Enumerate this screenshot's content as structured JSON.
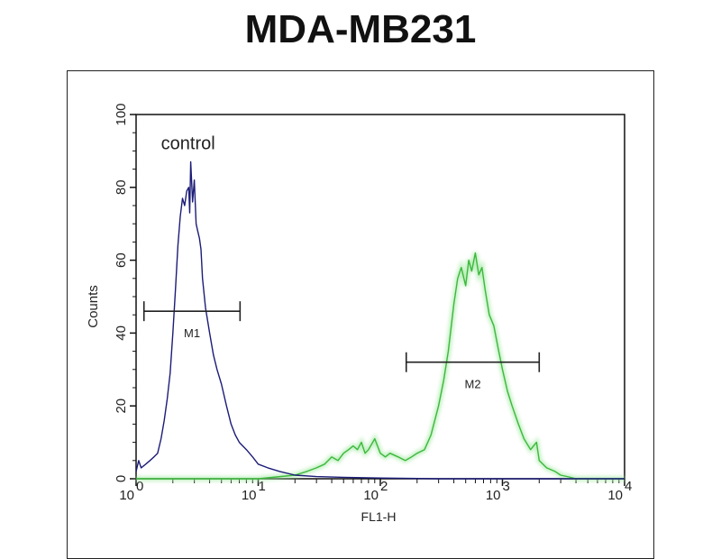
{
  "chart_data": {
    "type": "line",
    "title": "MDA-MB231",
    "xlabel": "FL1-H",
    "ylabel": "Counts",
    "x_scale": "log",
    "xlim": [
      1,
      10000
    ],
    "ylim": [
      0,
      100
    ],
    "x_tick_labels": [
      {
        "base": "10",
        "exp": "0"
      },
      {
        "base": "10",
        "exp": "1"
      },
      {
        "base": "10",
        "exp": "2"
      },
      {
        "base": "10",
        "exp": "3"
      },
      {
        "base": "10",
        "exp": "4"
      }
    ],
    "y_ticks": [
      0,
      20,
      40,
      60,
      80,
      100
    ],
    "grid": false,
    "annotations": [
      {
        "text": "control",
        "x": 1.6,
        "y": 92
      }
    ],
    "markers": [
      {
        "label": "M1",
        "x_start": 1.16,
        "x_end": 7.1,
        "y": 46
      },
      {
        "label": "M2",
        "x_start": 163,
        "x_end": 2000,
        "y": 32
      }
    ],
    "series": [
      {
        "color": "#1c1c78",
        "points": [
          [
            1.0,
            2
          ],
          [
            1.05,
            5
          ],
          [
            1.1,
            3
          ],
          [
            1.2,
            4
          ],
          [
            1.3,
            5
          ],
          [
            1.4,
            6
          ],
          [
            1.5,
            7
          ],
          [
            1.6,
            11
          ],
          [
            1.7,
            16
          ],
          [
            1.8,
            22
          ],
          [
            1.9,
            29
          ],
          [
            2.0,
            40
          ],
          [
            2.1,
            52
          ],
          [
            2.2,
            64
          ],
          [
            2.3,
            72
          ],
          [
            2.4,
            77
          ],
          [
            2.5,
            75
          ],
          [
            2.6,
            79
          ],
          [
            2.7,
            80
          ],
          [
            2.75,
            73
          ],
          [
            2.8,
            87
          ],
          [
            2.9,
            76
          ],
          [
            3.0,
            82
          ],
          [
            3.1,
            70
          ],
          [
            3.2,
            68
          ],
          [
            3.3,
            66
          ],
          [
            3.4,
            63
          ],
          [
            3.5,
            55
          ],
          [
            3.7,
            47
          ],
          [
            4.0,
            40
          ],
          [
            4.3,
            34
          ],
          [
            4.6,
            30
          ],
          [
            5.0,
            26
          ],
          [
            5.5,
            20
          ],
          [
            6.0,
            15
          ],
          [
            6.5,
            12
          ],
          [
            7.0,
            10
          ],
          [
            8.0,
            8
          ],
          [
            9.0,
            6
          ],
          [
            10,
            4
          ],
          [
            12,
            3
          ],
          [
            15,
            2
          ],
          [
            20,
            1
          ],
          [
            30,
            0.6
          ],
          [
            50,
            0.4
          ],
          [
            100,
            0.2
          ],
          [
            300,
            0
          ],
          [
            10000,
            0
          ]
        ]
      },
      {
        "color": "#3cb83c",
        "points": [
          [
            1,
            0
          ],
          [
            10,
            0
          ],
          [
            20,
            1
          ],
          [
            25,
            2
          ],
          [
            30,
            3
          ],
          [
            35,
            4
          ],
          [
            40,
            6
          ],
          [
            45,
            5
          ],
          [
            50,
            7
          ],
          [
            55,
            8
          ],
          [
            60,
            9
          ],
          [
            65,
            8
          ],
          [
            70,
            10
          ],
          [
            75,
            7
          ],
          [
            80,
            8
          ],
          [
            90,
            11
          ],
          [
            100,
            7
          ],
          [
            110,
            6
          ],
          [
            120,
            7
          ],
          [
            140,
            6
          ],
          [
            160,
            5
          ],
          [
            180,
            6
          ],
          [
            200,
            7
          ],
          [
            230,
            8
          ],
          [
            260,
            12
          ],
          [
            300,
            20
          ],
          [
            330,
            27
          ],
          [
            360,
            35
          ],
          [
            400,
            48
          ],
          [
            430,
            55
          ],
          [
            460,
            58
          ],
          [
            500,
            53
          ],
          [
            530,
            60
          ],
          [
            560,
            57
          ],
          [
            600,
            62
          ],
          [
            640,
            56
          ],
          [
            680,
            58
          ],
          [
            720,
            52
          ],
          [
            780,
            45
          ],
          [
            850,
            42
          ],
          [
            920,
            36
          ],
          [
            1000,
            30
          ],
          [
            1100,
            24
          ],
          [
            1200,
            20
          ],
          [
            1350,
            15
          ],
          [
            1500,
            11
          ],
          [
            1700,
            8
          ],
          [
            1900,
            10
          ],
          [
            2000,
            5
          ],
          [
            2300,
            3
          ],
          [
            2700,
            2
          ],
          [
            3000,
            1
          ],
          [
            3500,
            0.5
          ],
          [
            4000,
            0
          ],
          [
            10000,
            0
          ]
        ]
      }
    ]
  }
}
